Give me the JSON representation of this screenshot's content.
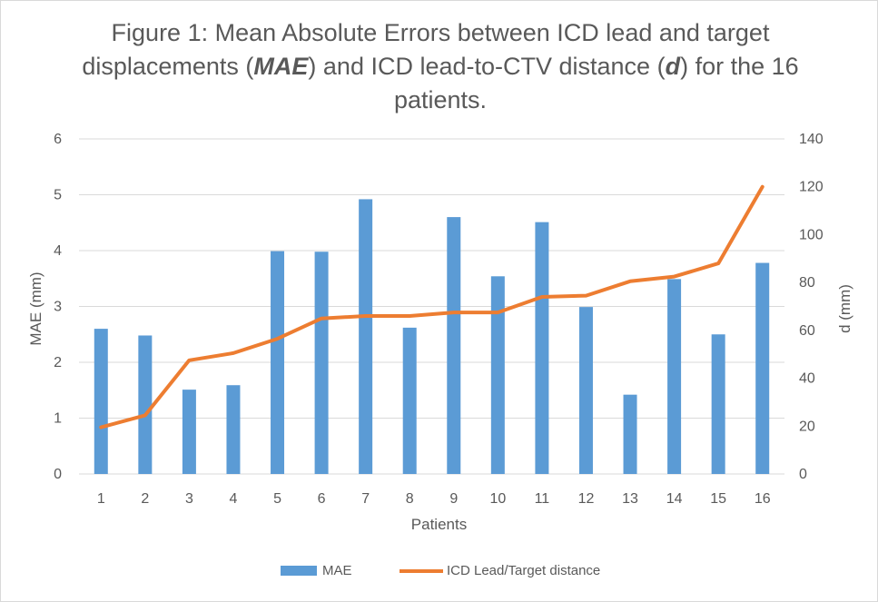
{
  "chart_data": {
    "type": "bar",
    "title_parts": {
      "a": "Figure 1: Mean Absolute Errors between ICD lead and target displacements (",
      "b": "MAE",
      "c": ") and ICD lead-to-CTV distance (",
      "d": "d",
      "e": ") for the 16 patients."
    },
    "xlabel": "Patients",
    "ylabel": "MAE (mm)",
    "y2label": "d (mm)",
    "categories": [
      "1",
      "2",
      "3",
      "4",
      "5",
      "6",
      "7",
      "8",
      "9",
      "10",
      "11",
      "12",
      "13",
      "14",
      "15",
      "16"
    ],
    "ylim": [
      0,
      6
    ],
    "y_ticks": [
      0,
      1,
      2,
      3,
      4,
      5,
      6
    ],
    "y2lim": [
      0,
      140
    ],
    "y2_ticks": [
      0,
      20,
      40,
      60,
      80,
      100,
      120,
      140
    ],
    "grid": true,
    "legend_position": "bottom",
    "series": [
      {
        "name": "MAE",
        "type": "bar",
        "axis": "left",
        "color": "#5b9bd5",
        "values": [
          2.6,
          2.48,
          1.51,
          1.59,
          3.99,
          3.98,
          4.92,
          2.62,
          4.6,
          3.54,
          4.51,
          2.99,
          1.42,
          3.49,
          2.5,
          3.78
        ]
      },
      {
        "name": "ICD Lead/Target distance",
        "type": "line",
        "axis": "right",
        "color": "#ed7d31",
        "values": [
          19.5,
          24.5,
          47.5,
          50.5,
          56.5,
          65,
          66,
          66,
          67.5,
          67.5,
          74,
          74.5,
          80.5,
          82.5,
          88,
          120
        ]
      }
    ]
  }
}
